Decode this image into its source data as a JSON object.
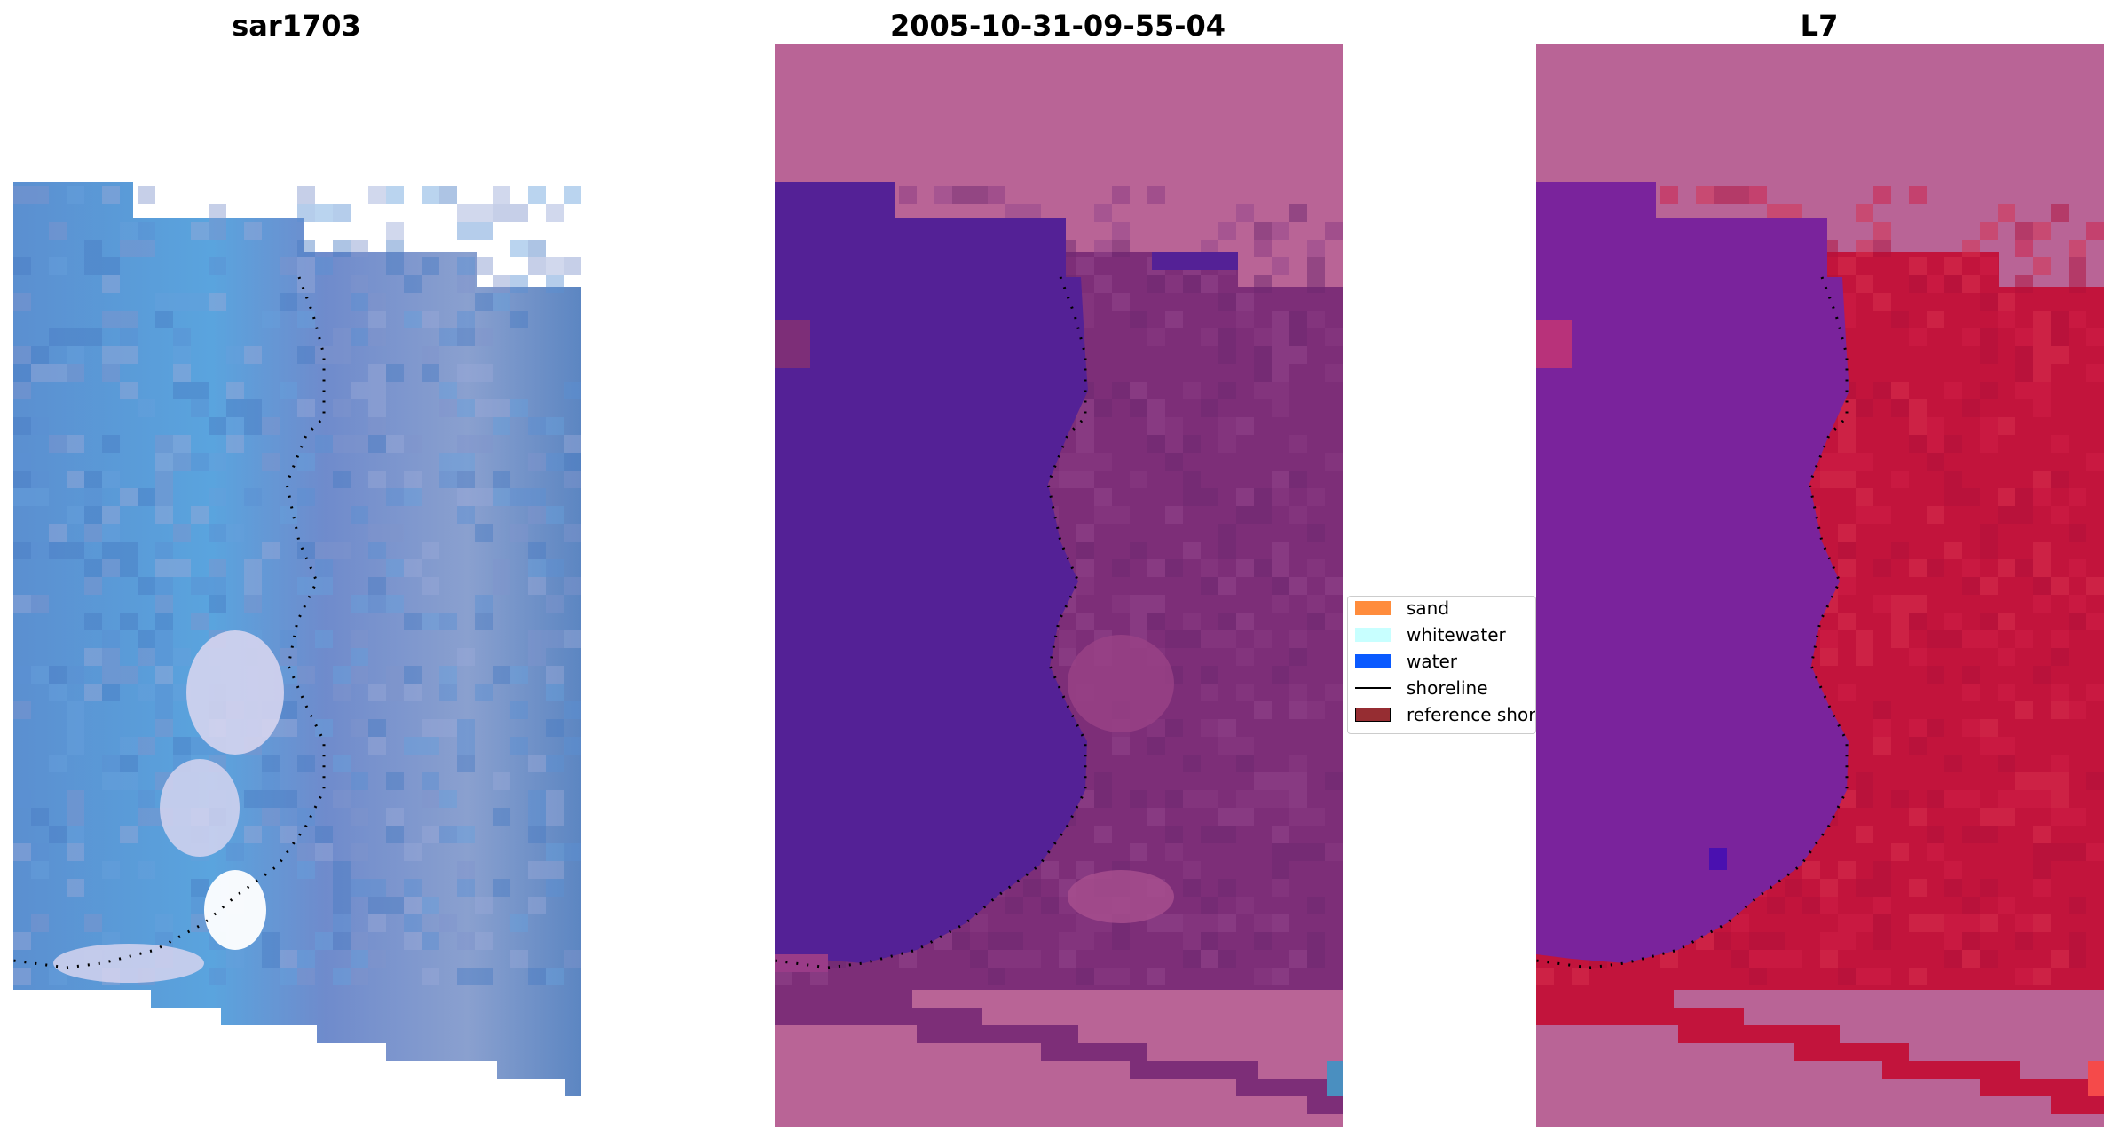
{
  "panels": [
    {
      "title": "sar1703",
      "kind": "rgb"
    },
    {
      "title": "2005-10-31-09-55-04",
      "kind": "classified"
    },
    {
      "title": "L7",
      "kind": "index"
    }
  ],
  "colors": {
    "nodata_overlay": "#b96496",
    "rgb_blue": "#4d78be",
    "rgb_light": "#64aae1",
    "rgb_white": "#dcd7f0",
    "water_class": "#542196",
    "land_class": "#7d2e78",
    "index_water": "#7a239c",
    "index_land": "#c2143c",
    "shoreline_dots": "#000000"
  },
  "legend": {
    "items": [
      {
        "label": "sand",
        "color": "#ff8c3c"
      },
      {
        "label": "whitewater",
        "color": "#c8ffff"
      },
      {
        "label": "water",
        "color": "#0a5aff"
      },
      {
        "label": "shoreline",
        "color": "#000000"
      },
      {
        "label": "reference shoreline",
        "color": "#962d32"
      }
    ]
  }
}
